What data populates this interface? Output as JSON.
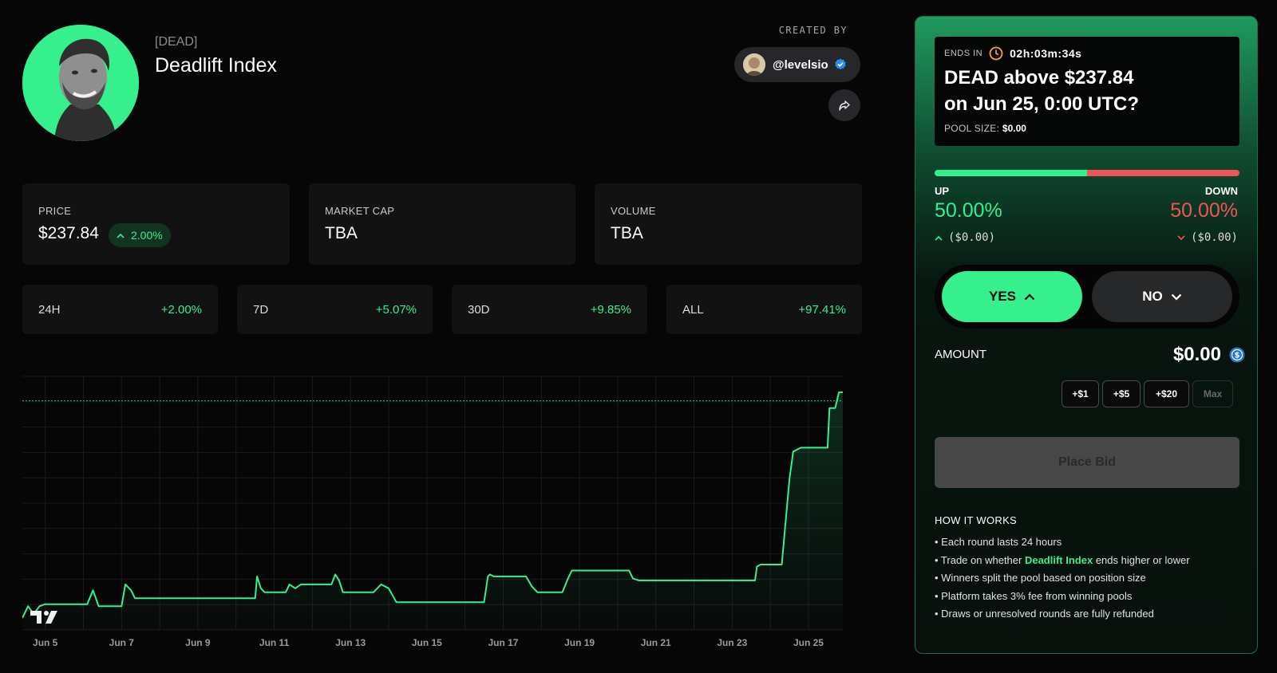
{
  "token": {
    "ticker": "[DEAD]",
    "name": "Deadlift Index",
    "created_by_label": "CREATED BY",
    "creator_handle": "@levelsio"
  },
  "stats": {
    "price_label": "PRICE",
    "price_value": "$237.84",
    "price_change": "2.00%",
    "market_cap_label": "MARKET CAP",
    "market_cap_value": "TBA",
    "volume_label": "VOLUME",
    "volume_value": "TBA"
  },
  "periods": [
    {
      "label": "24H",
      "change": "+2.00%"
    },
    {
      "label": "7D",
      "change": "+5.07%"
    },
    {
      "label": "30D",
      "change": "+9.85%"
    },
    {
      "label": "ALL",
      "change": "+97.41%"
    }
  ],
  "chart_data": {
    "type": "line",
    "x_tick_labels": [
      "Jun 5",
      "Jun 7",
      "Jun 9",
      "Jun 11",
      "Jun 13",
      "Jun 15",
      "Jun 17",
      "Jun 19",
      "Jun 21",
      "Jun 23",
      "Jun 25"
    ],
    "xlim": [
      4.4,
      25.9
    ],
    "ylim": [
      180,
      244
    ],
    "reference_line": 237.84,
    "grid": true,
    "series": [
      {
        "color": "#35f08c",
        "x": [
          4.4,
          4.55,
          4.7,
          4.85,
          5.0,
          5.1,
          5.3,
          5.9,
          6.1,
          6.25,
          6.4,
          6.5,
          7.0,
          7.1,
          7.25,
          7.35,
          7.5,
          8.3,
          9.5,
          10.5,
          10.55,
          10.65,
          10.75,
          11.3,
          11.4,
          11.55,
          11.7,
          12.5,
          12.6,
          12.7,
          12.8,
          13.0,
          13.6,
          13.8,
          14.0,
          14.2,
          14.7,
          15.0,
          16.5,
          16.6,
          16.65,
          16.75,
          16.95,
          17.2,
          17.6,
          17.75,
          17.9,
          18.3,
          18.55,
          18.7,
          18.8,
          18.9,
          19.6,
          20.3,
          20.4,
          20.55,
          20.7,
          21.3,
          22.0,
          23.2,
          23.6,
          23.65,
          23.75,
          24.3,
          24.5,
          24.6,
          24.8,
          25.3,
          25.5,
          25.55,
          25.7,
          25.8,
          25.9
        ],
        "y": [
          183,
          186,
          184,
          186,
          186.5,
          186.5,
          186.5,
          186.5,
          186.5,
          190,
          186,
          186,
          186,
          191.5,
          190,
          188,
          188,
          188,
          188,
          188,
          193.5,
          190.5,
          189.5,
          189.5,
          191.5,
          190.5,
          191.5,
          191.5,
          194,
          192.5,
          189.5,
          189.5,
          189.5,
          191.5,
          190.5,
          187,
          187,
          187,
          187,
          193.5,
          194,
          193.5,
          193.5,
          193.5,
          193.5,
          191,
          189.5,
          189.5,
          189.5,
          193,
          195,
          195,
          195,
          195,
          193,
          192.5,
          192.5,
          192.5,
          192.5,
          192.5,
          192.5,
          196,
          196.5,
          196.5,
          218,
          225,
          226,
          226,
          226,
          236,
          236,
          240,
          240
        ]
      }
    ]
  },
  "market": {
    "ends_in_label": "ENDS IN",
    "countdown": "02h:03m:34s",
    "question_line1": "DEAD above $237.84",
    "question_line2": "on Jun 25, 0:00 UTC?",
    "pool_label": "POOL SIZE:",
    "pool_value": "$0.00",
    "up_label": "UP",
    "down_label": "DOWN",
    "up_share": 0.5,
    "up_pct": "50.00%",
    "down_pct": "50.00%",
    "up_amount": "($0.00)",
    "down_amount": "($0.00)",
    "yes_label": "YES",
    "no_label": "NO",
    "amount_label": "AMOUNT",
    "amount_value": "$0.00",
    "chips": [
      "+$1",
      "+$5",
      "+$20",
      "Max"
    ],
    "place_bid_label": "Place Bid",
    "how_title": "HOW IT WORKS",
    "how_items": [
      "• Each round lasts 24 hours",
      "• Trade on whether ",
      "Deadlift Index",
      " ends higher or lower",
      "• Winners split the pool based on position size",
      "• Platform takes 3% fee from winning pools",
      "• Draws or unresolved rounds are fully refunded"
    ]
  },
  "colors": {
    "accent_green": "#35f08c",
    "down_red": "#f05555",
    "background": "#060607"
  },
  "icons": [
    "verified-icon",
    "share-icon",
    "chevron-up-icon",
    "chevron-down-icon",
    "clock-icon",
    "usdc-icon",
    "tradingview-logo-icon"
  ]
}
